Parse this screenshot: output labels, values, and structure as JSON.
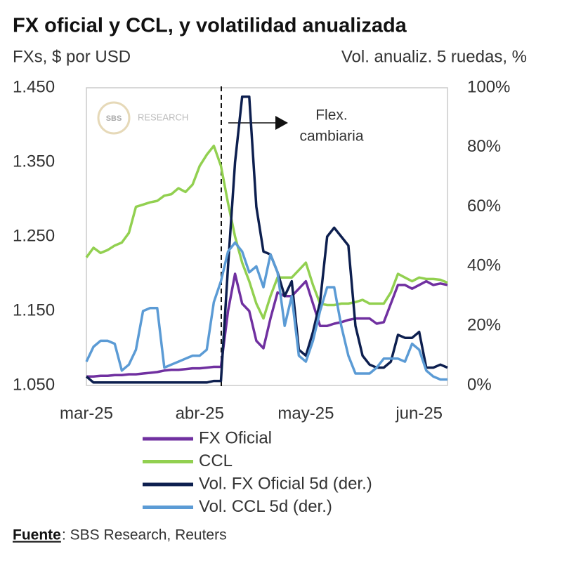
{
  "chart_data": {
    "type": "line",
    "title": "FX oficial y CCL, y volatilidad anualizada",
    "y_label": "FXs, $ por USD",
    "y2_label": "Vol. anualiz. 5 ruedas, %",
    "annotation": [
      "Flex.",
      "cambiaria"
    ],
    "logo": {
      "mark": "SBS",
      "text": "RESEARCH"
    },
    "source": {
      "label": "Fuente",
      "text": ": SBS Research, Reuters"
    },
    "categories": [
      "mar-25",
      null,
      null,
      null,
      null,
      null,
      null,
      null,
      null,
      null,
      null,
      null,
      null,
      null,
      null,
      null,
      "abr-25",
      null,
      null,
      null,
      null,
      null,
      null,
      null,
      null,
      null,
      null,
      null,
      null,
      null,
      null,
      "may-25",
      null,
      null,
      null,
      null,
      null,
      null,
      null,
      null,
      null,
      null,
      null,
      null,
      null,
      null,
      null,
      "jun-25",
      null,
      null,
      null,
      null
    ],
    "ylim": [
      1050,
      1450
    ],
    "yticks": [
      {
        "value": 1450,
        "label": "1.450"
      },
      {
        "value": 1350,
        "label": "1.350"
      },
      {
        "value": 1250,
        "label": "1.250"
      },
      {
        "value": 1150,
        "label": "1.150"
      },
      {
        "value": 1050,
        "label": "1.050"
      }
    ],
    "y2lim": [
      0,
      100
    ],
    "y2ticks": [
      {
        "value": 100,
        "label": "100%"
      },
      {
        "value": 80,
        "label": "80%"
      },
      {
        "value": 60,
        "label": "60%"
      },
      {
        "value": 40,
        "label": "40%"
      },
      {
        "value": 20,
        "label": "20%"
      },
      {
        "value": 0,
        "label": "0%"
      }
    ],
    "series": [
      {
        "name": "FX Oficial",
        "color": "#7030a0",
        "values": [
          1062,
          1062,
          1063,
          1063,
          1064,
          1064,
          1065,
          1065,
          1066,
          1067,
          1068,
          1070,
          1071,
          1071,
          1072,
          1073,
          1073,
          1074,
          1075,
          1075,
          1150,
          1200,
          1160,
          1150,
          1110,
          1100,
          1140,
          1175,
          1170,
          1170,
          1180,
          1190,
          1160,
          1130,
          1130,
          1133,
          1135,
          1138,
          1140,
          1140,
          1140,
          1133,
          1135,
          1160,
          1185,
          1185,
          1180,
          1185,
          1190,
          1185,
          1187,
          1185
        ]
      },
      {
        "name": "CCL",
        "color": "#92d050",
        "values": [
          1222,
          1235,
          1228,
          1232,
          1238,
          1242,
          1255,
          1290,
          1293,
          1296,
          1298,
          1305,
          1307,
          1315,
          1310,
          1320,
          1345,
          1360,
          1372,
          1345,
          1295,
          1250,
          1215,
          1190,
          1160,
          1140,
          1170,
          1195,
          1195,
          1195,
          1205,
          1215,
          1185,
          1160,
          1158,
          1158,
          1160,
          1160,
          1162,
          1165,
          1160,
          1160,
          1160,
          1175,
          1200,
          1195,
          1190,
          1195,
          1193,
          1193,
          1192,
          1188
        ]
      },
      {
        "name": "Vol. FX Oficial 5d (der.)",
        "color": "#0d1f4f",
        "axis": "y2",
        "values": [
          3,
          1,
          1,
          1,
          1,
          1,
          1,
          1,
          1,
          1,
          1,
          1,
          1,
          1,
          1,
          1,
          1,
          1,
          1.5,
          1.5,
          40,
          75,
          97,
          97,
          60,
          45,
          44,
          38,
          30,
          35,
          12,
          10,
          18,
          28,
          50,
          53,
          50,
          47,
          20,
          10,
          7,
          6,
          6,
          8,
          17,
          16,
          16,
          18,
          6,
          6,
          7,
          6
        ]
      },
      {
        "name": "Vol. CCL 5d (der.)",
        "color": "#5b9bd5",
        "axis": "y2",
        "values": [
          8,
          13,
          15,
          15,
          14,
          5,
          7,
          12,
          25,
          26,
          26,
          6,
          7,
          8,
          9,
          10,
          10,
          12,
          28,
          35,
          45,
          48,
          45,
          38,
          40,
          33,
          44,
          38,
          20,
          30,
          10,
          8,
          15,
          25,
          33,
          33,
          20,
          10,
          4,
          4,
          4,
          6,
          9,
          9,
          9,
          8,
          14,
          12,
          5,
          3,
          2,
          2
        ]
      }
    ]
  }
}
